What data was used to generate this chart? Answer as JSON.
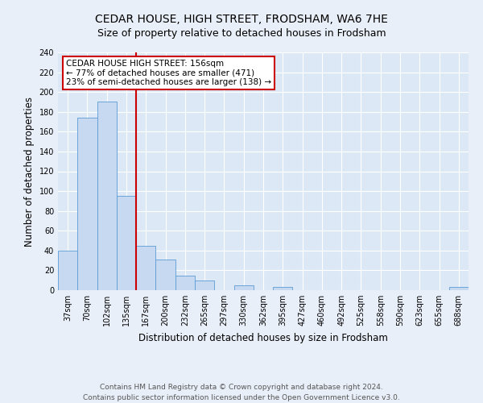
{
  "title": "CEDAR HOUSE, HIGH STREET, FRODSHAM, WA6 7HE",
  "subtitle": "Size of property relative to detached houses in Frodsham",
  "xlabel": "Distribution of detached houses by size in Frodsham",
  "ylabel": "Number of detached properties",
  "bin_labels": [
    "37sqm",
    "70sqm",
    "102sqm",
    "135sqm",
    "167sqm",
    "200sqm",
    "232sqm",
    "265sqm",
    "297sqm",
    "330sqm",
    "362sqm",
    "395sqm",
    "427sqm",
    "460sqm",
    "492sqm",
    "525sqm",
    "558sqm",
    "590sqm",
    "623sqm",
    "655sqm",
    "688sqm"
  ],
  "bar_values": [
    40,
    174,
    190,
    95,
    45,
    31,
    15,
    10,
    0,
    5,
    0,
    3,
    0,
    0,
    0,
    0,
    0,
    0,
    0,
    0,
    3
  ],
  "bar_color": "#c6d9f0",
  "bar_edge_color": "#5b9bd5",
  "property_line_bin_index": 4,
  "annotation_text": "CEDAR HOUSE HIGH STREET: 156sqm\n← 77% of detached houses are smaller (471)\n23% of semi-detached houses are larger (138) →",
  "annotation_box_color": "#ffffff",
  "annotation_box_edge": "#cc0000",
  "line_color": "#cc0000",
  "ylim": [
    0,
    240
  ],
  "yticks": [
    0,
    20,
    40,
    60,
    80,
    100,
    120,
    140,
    160,
    180,
    200,
    220,
    240
  ],
  "footer_line1": "Contains HM Land Registry data © Crown copyright and database right 2024.",
  "footer_line2": "Contains public sector information licensed under the Open Government Licence v3.0.",
  "bg_color": "#e9eff8",
  "plot_bg_color": "#dce8f5",
  "title_fontsize": 10,
  "subtitle_fontsize": 9,
  "label_fontsize": 8.5,
  "tick_fontsize": 7,
  "footer_fontsize": 6.5,
  "annotation_fontsize": 7.5
}
